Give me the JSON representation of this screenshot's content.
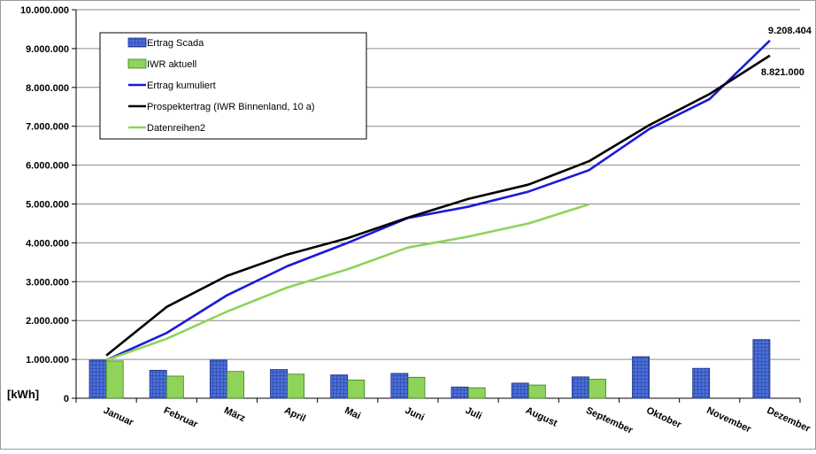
{
  "chart_data": {
    "type": "bar",
    "categories": [
      "Januar",
      "Februar",
      "März",
      "April",
      "Mai",
      "Juni",
      "Juli",
      "August",
      "September",
      "Oktober",
      "November",
      "Dezember"
    ],
    "ylim": [
      0,
      10000000
    ],
    "yticks": [
      "0",
      "1.000.000",
      "2.000.000",
      "3.000.000",
      "4.000.000",
      "5.000.000",
      "6.000.000",
      "7.000.000",
      "8.000.000",
      "9.000.000",
      "10.000.000"
    ],
    "ylabel": "[kWh]",
    "grid": true,
    "legend_position": "top-left",
    "series": [
      {
        "name": "Ertrag Scada",
        "kind": "bar",
        "color": "#4a6fd8",
        "values": [
          980000,
          720000,
          980000,
          740000,
          600000,
          640000,
          290000,
          390000,
          550000,
          1070000,
          770000,
          1510000
        ]
      },
      {
        "name": "IWR aktuell",
        "kind": "bar",
        "color": "#8fd35a",
        "values": [
          960000,
          570000,
          690000,
          620000,
          470000,
          540000,
          270000,
          340000,
          490000,
          null,
          null,
          null
        ]
      },
      {
        "name": "Ertrag kumuliert",
        "kind": "line",
        "color": "#1a1ad8",
        "values": [
          980000,
          1680000,
          2650000,
          3400000,
          4000000,
          4640000,
          4930000,
          5320000,
          5870000,
          6930000,
          7700000,
          9208404
        ]
      },
      {
        "name": "Prospektertrag (IWR Binnenland, 10 a)",
        "kind": "line",
        "color": "#000000",
        "values": [
          1100000,
          2350000,
          3150000,
          3700000,
          4120000,
          4650000,
          5130000,
          5500000,
          6100000,
          7030000,
          7830000,
          8821000
        ]
      },
      {
        "name": "Datenreihen2",
        "kind": "line",
        "color": "#8fd35a",
        "values": [
          980000,
          1530000,
          2230000,
          2850000,
          3320000,
          3880000,
          4160000,
          4500000,
          4990000,
          null,
          null,
          null
        ]
      }
    ],
    "annotations": [
      "9.208.404",
      "8.821.000"
    ]
  }
}
